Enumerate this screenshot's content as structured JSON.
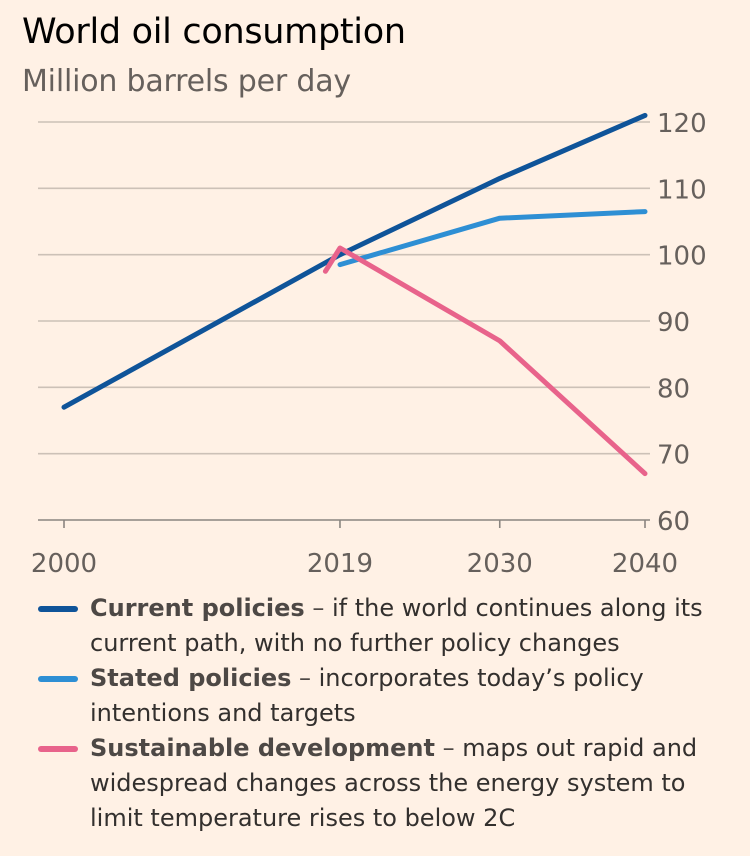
{
  "chart_data": {
    "type": "line",
    "title": "World oil consumption",
    "subtitle": "Million barrels per day",
    "x_ticks": [
      "2000",
      "2019",
      "2030",
      "2040"
    ],
    "y_ticks": [
      60,
      70,
      80,
      90,
      100,
      110,
      120
    ],
    "ylim": [
      60,
      120
    ],
    "xlim": [
      2000,
      2040
    ],
    "grid": true,
    "y_axis_side": "right",
    "legend_position": "bottom",
    "series": [
      {
        "name": "Current policies",
        "description": "if the world continues along its current path, with no further policy changes",
        "color": "#0f5499",
        "points": [
          [
            2000,
            77
          ],
          [
            2019,
            100
          ],
          [
            2030,
            111.5
          ],
          [
            2040,
            121
          ]
        ]
      },
      {
        "name": "Stated policies",
        "description": "incorporates today’s policy intentions and targets",
        "color": "#2e8fd4",
        "points": [
          [
            2019,
            98.5
          ],
          [
            2030,
            105.5
          ],
          [
            2040,
            106.5
          ]
        ]
      },
      {
        "name": "Sustainable development",
        "description": "maps out rapid and widespread changes across the energy system to limit temperature rises to below 2C",
        "color": "#e8638b",
        "points": [
          [
            2018,
            97.5
          ],
          [
            2019,
            101
          ],
          [
            2030,
            87
          ],
          [
            2040,
            67
          ]
        ]
      }
    ]
  }
}
